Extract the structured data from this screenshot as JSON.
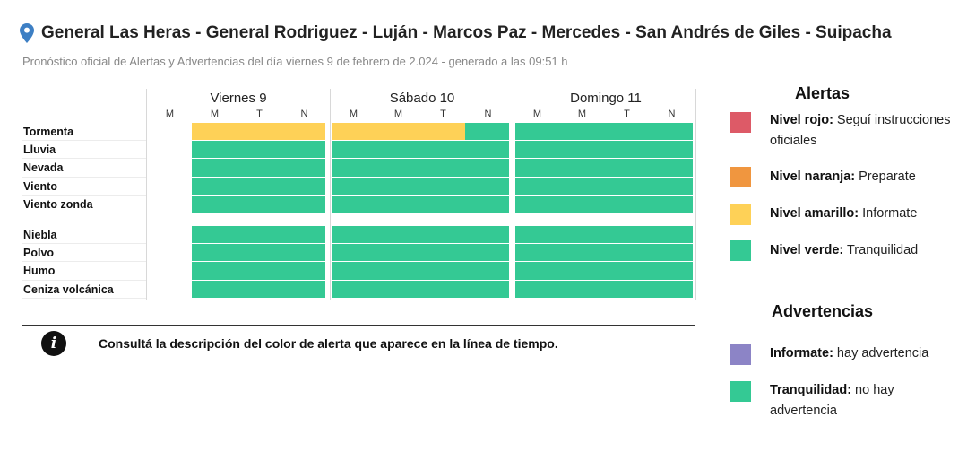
{
  "header": {
    "title": "General Las Heras - General Rodriguez - Luján - Marcos Paz - Mercedes - San Andrés de Giles - Suipacha",
    "subtitle": "Pronóstico oficial de Alertas y Advertencias del día viernes 9 de febrero de 2.024 - generado a las 09:51 h"
  },
  "colors": {
    "rojo": "#dd5a67",
    "naranja": "#f0963f",
    "amarillo": "#fed157",
    "verde": "#34c994",
    "informate": "#8c84c6"
  },
  "timeline": {
    "days": [
      "Viernes 9",
      "Sábado 10",
      "Domingo 11"
    ],
    "periods": [
      "M",
      "M",
      "T",
      "N",
      "M",
      "M",
      "T",
      "N",
      "M",
      "M",
      "T",
      "N"
    ],
    "groups": [
      {
        "rows": [
          {
            "label": "Tormenta",
            "levels": [
              "none",
              "amarillo",
              "amarillo",
              "amarillo",
              "amarillo",
              "amarillo",
              "amarillo",
              "verde",
              "verde",
              "verde",
              "verde",
              "verde"
            ]
          },
          {
            "label": "Lluvia",
            "levels": [
              "none",
              "verde",
              "verde",
              "verde",
              "verde",
              "verde",
              "verde",
              "verde",
              "verde",
              "verde",
              "verde",
              "verde"
            ]
          },
          {
            "label": "Nevada",
            "levels": [
              "none",
              "verde",
              "verde",
              "verde",
              "verde",
              "verde",
              "verde",
              "verde",
              "verde",
              "verde",
              "verde",
              "verde"
            ]
          },
          {
            "label": "Viento",
            "levels": [
              "none",
              "verde",
              "verde",
              "verde",
              "verde",
              "verde",
              "verde",
              "verde",
              "verde",
              "verde",
              "verde",
              "verde"
            ]
          },
          {
            "label": "Viento zonda",
            "levels": [
              "none",
              "verde",
              "verde",
              "verde",
              "verde",
              "verde",
              "verde",
              "verde",
              "verde",
              "verde",
              "verde",
              "verde"
            ]
          }
        ]
      },
      {
        "rows": [
          {
            "label": "Niebla",
            "levels": [
              "none",
              "verde",
              "verde",
              "verde",
              "verde",
              "verde",
              "verde",
              "verde",
              "verde",
              "verde",
              "verde",
              "verde"
            ]
          },
          {
            "label": "Polvo",
            "levels": [
              "none",
              "verde",
              "verde",
              "verde",
              "verde",
              "verde",
              "verde",
              "verde",
              "verde",
              "verde",
              "verde",
              "verde"
            ]
          },
          {
            "label": "Humo",
            "levels": [
              "none",
              "verde",
              "verde",
              "verde",
              "verde",
              "verde",
              "verde",
              "verde",
              "verde",
              "verde",
              "verde",
              "verde"
            ]
          },
          {
            "label": "Ceniza volcánica",
            "levels": [
              "none",
              "verde",
              "verde",
              "verde",
              "verde",
              "verde",
              "verde",
              "verde",
              "verde",
              "verde",
              "verde",
              "verde"
            ]
          }
        ]
      }
    ]
  },
  "info": {
    "icon": "info-icon",
    "text": "Consultá la descripción del color de alerta que aparece en la línea de tiempo."
  },
  "legend": {
    "alertas_title": "Alertas",
    "alertas": [
      {
        "level": "rojo",
        "name": "Nivel rojo:",
        "desc": " Seguí instrucciones oficiales"
      },
      {
        "level": "naranja",
        "name": "Nivel naranja:",
        "desc": " Preparate"
      },
      {
        "level": "amarillo",
        "name": "Nivel amarillo:",
        "desc": " Informate"
      },
      {
        "level": "verde",
        "name": "Nivel verde:",
        "desc": " Tranquilidad"
      }
    ],
    "advertencias_title": "Advertencias",
    "advertencias": [
      {
        "level": "informate",
        "name": "Informate:",
        "desc": " hay advertencia"
      },
      {
        "level": "verde",
        "name": "Tranquilidad:",
        "desc": " no hay advertencia"
      }
    ]
  }
}
